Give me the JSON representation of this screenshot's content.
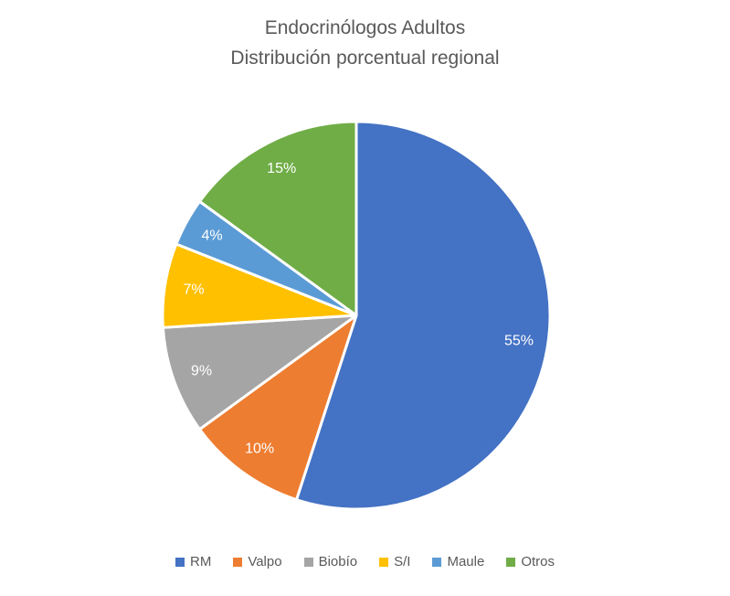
{
  "chart_data": {
    "type": "pie",
    "title": "Endocrinólogos Adultos Distribución porcentual regional",
    "title_lines": [
      "Endocrinólogos Adultos",
      "Distribución porcentual regional"
    ],
    "categories": [
      "RM",
      "Valpo",
      "Biobío",
      "S/I",
      "Maule",
      "Otros"
    ],
    "values": [
      55,
      10,
      9,
      7,
      4,
      15
    ],
    "labels": [
      "55%",
      "10%",
      "9%",
      "7%",
      "4%",
      "15%"
    ],
    "unit": "%",
    "colors": [
      "#4472C4",
      "#ED7D31",
      "#A5A5A5",
      "#FFC000",
      "#5B9BD5",
      "#70AD47"
    ],
    "slice_label_color": "#FFFFFF",
    "title_color": "#595959",
    "legend_text_color": "#595959",
    "start_angle_deg": 0,
    "direction": "clockwise",
    "legend_position": "bottom",
    "grid": false
  }
}
